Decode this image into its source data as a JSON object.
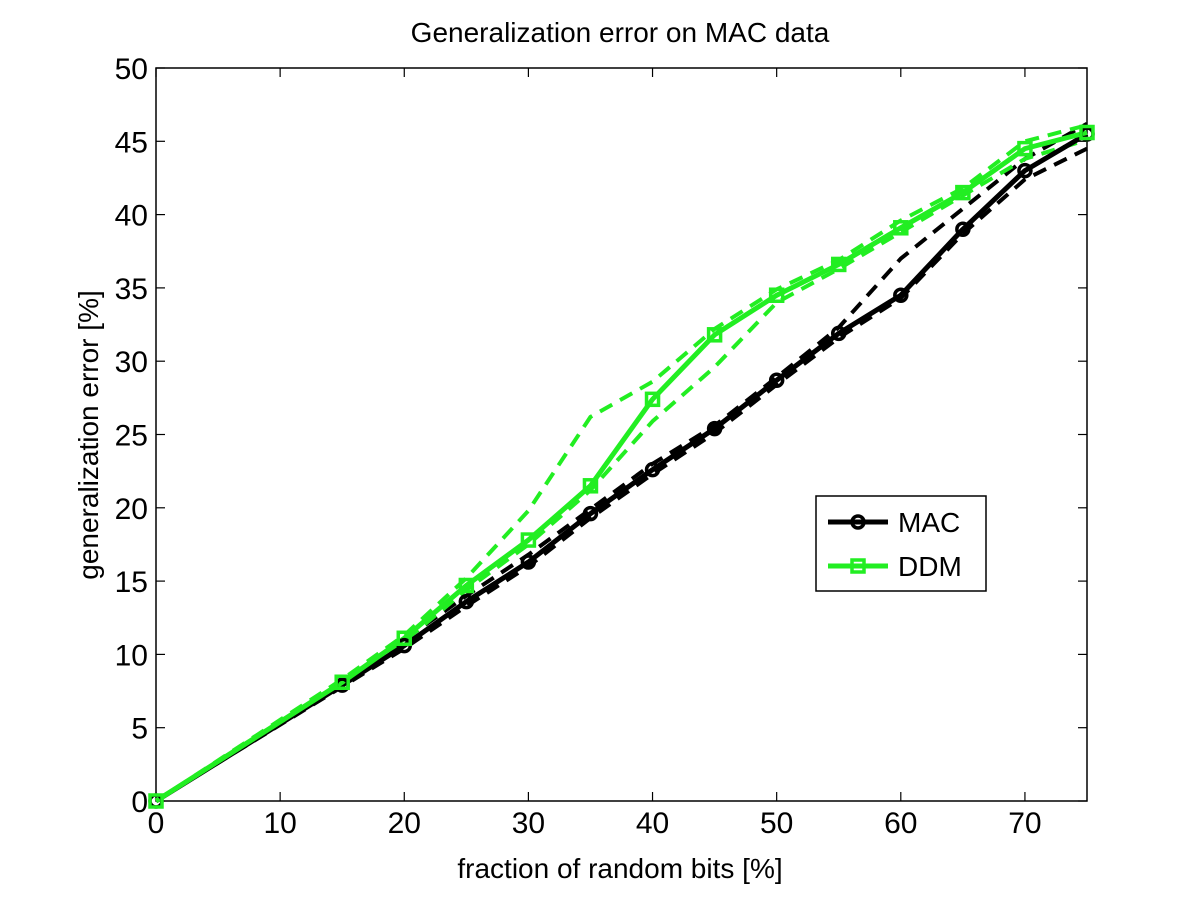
{
  "chart_data": {
    "type": "line",
    "title": "Generalization error on MAC data",
    "xlabel": "fraction of random bits [%]",
    "ylabel": "generalization error [%]",
    "xlim": [
      0,
      75
    ],
    "ylim": [
      0,
      50
    ],
    "xticks": [
      "0",
      "10",
      "20",
      "30",
      "40",
      "50",
      "60",
      "70"
    ],
    "yticks": [
      "0",
      "5",
      "10",
      "15",
      "20",
      "25",
      "30",
      "35",
      "40",
      "45",
      "50"
    ],
    "xtick_values": [
      0,
      10,
      20,
      30,
      40,
      50,
      60,
      70
    ],
    "ytick_values": [
      0,
      5,
      10,
      15,
      20,
      25,
      30,
      35,
      40,
      45,
      50
    ],
    "grid": false,
    "legend_position": "center-right",
    "x": [
      0,
      15,
      20,
      25,
      30,
      35,
      40,
      45,
      50,
      55,
      60,
      65,
      70,
      75
    ],
    "series": [
      {
        "name": "MAC",
        "color": "#000000",
        "marker": "circle",
        "values": [
          0,
          7.9,
          10.6,
          13.6,
          16.3,
          19.6,
          22.6,
          25.4,
          28.7,
          31.9,
          34.5,
          39.0,
          43.0,
          45.5
        ],
        "bounds": [
          {
            "x": [
              0,
              15,
              20,
              25,
              30,
              35,
              40,
              45,
              50,
              55,
              60,
              65,
              70,
              75
            ],
            "values": [
              0,
              8.0,
              11.0,
              14.0,
              16.8,
              19.9,
              23.0,
              25.6,
              28.9,
              32.3,
              37.0,
              40.4,
              43.8,
              46.2
            ]
          },
          {
            "x": [
              0,
              15,
              20,
              25,
              30,
              35,
              40,
              45,
              50,
              55,
              60,
              65,
              70,
              75
            ],
            "values": [
              0,
              7.8,
              10.4,
              13.3,
              16.0,
              19.3,
              22.3,
              25.1,
              28.4,
              31.6,
              34.3,
              38.7,
              42.4,
              44.5
            ]
          }
        ]
      },
      {
        "name": "DDM",
        "color": "#22ee22",
        "marker": "square",
        "values": [
          0,
          8.1,
          11.1,
          14.7,
          17.8,
          21.5,
          27.4,
          31.8,
          34.5,
          36.6,
          39.1,
          41.5,
          44.5,
          45.6
        ],
        "bounds": [
          {
            "x": [
              0,
              15,
              20,
              25,
              30,
              35,
              40,
              45,
              50,
              55,
              60,
              65,
              70,
              75
            ],
            "values": [
              0,
              8.3,
              11.3,
              15.2,
              19.8,
              26.2,
              28.6,
              32.2,
              34.9,
              36.9,
              39.6,
              41.8,
              45.0,
              46.1
            ]
          },
          {
            "x": [
              0,
              15,
              20,
              25,
              30,
              35,
              40,
              45,
              50,
              55,
              60,
              65,
              70,
              75
            ],
            "values": [
              0,
              8.0,
              10.9,
              14.4,
              17.5,
              21.2,
              25.9,
              29.6,
              34.0,
              36.3,
              38.8,
              41.3,
              43.8,
              45.1
            ]
          }
        ]
      }
    ]
  }
}
